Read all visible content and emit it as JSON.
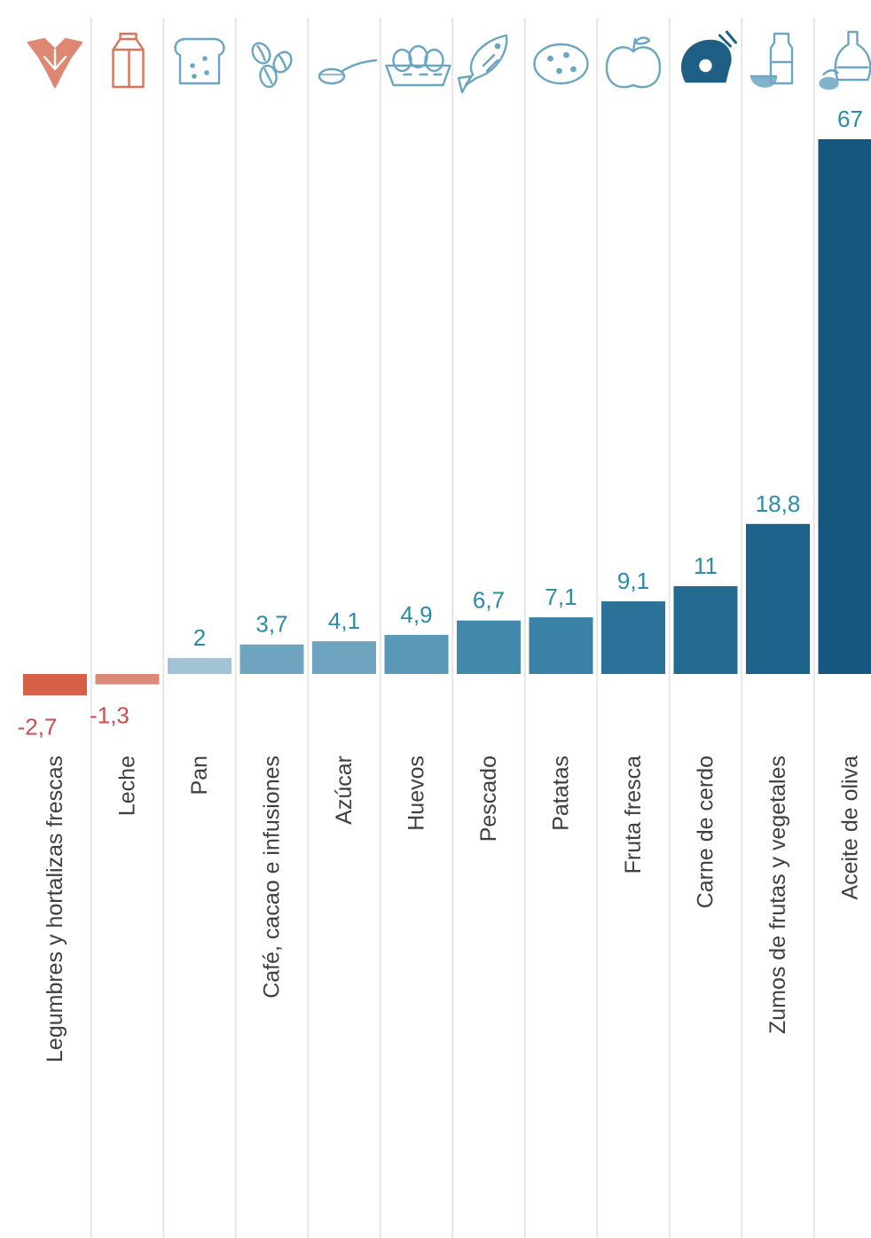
{
  "chart_data": {
    "type": "bar",
    "title": "",
    "xlabel": "",
    "ylabel": "",
    "ylim": [
      -3,
      67
    ],
    "grid": "vertical-separators",
    "legend": "none",
    "categories": [
      "Legumbres y hortalizas frescas",
      "Leche",
      "Pan",
      "Café, cacao e infusiones",
      "Azúcar",
      "Huevos",
      "Pescado",
      "Patatas",
      "Fruta fresca",
      "Carne de cerdo",
      "Zumos de frutas y vegetales",
      "Aceite de oliva"
    ],
    "values": [
      -2.7,
      -1.3,
      2,
      3.7,
      4.1,
      4.9,
      6.7,
      7.1,
      9.1,
      11,
      18.8,
      67
    ],
    "value_labels": [
      "-2,7",
      "-1,3",
      "2",
      "3,7",
      "4,1",
      "4,9",
      "6,7",
      "7,1",
      "9,1",
      "11",
      "18,8",
      "67"
    ],
    "icons": [
      "vegetables-icon",
      "milk-carton-icon",
      "bread-icon",
      "coffee-beans-icon",
      "sugar-spoon-icon",
      "eggs-icon",
      "fish-icon",
      "potatoes-icon",
      "apple-icon",
      "pork-icon",
      "juice-bottle-icon",
      "olive-oil-icon"
    ],
    "colors": {
      "negative": [
        "#d86048",
        "#dc8a78"
      ],
      "positive": [
        "#a4c2d6",
        "#6ea4c0",
        "#6ea4c0",
        "#5a98b8",
        "#4188ab",
        "#3a82a6",
        "#2a7299",
        "#236a91",
        "#1c628a",
        "#15577f"
      ],
      "negative_label": "#cf4a52",
      "positive_label": "#2a8ca8",
      "icon_negative": "#d9735a",
      "icon_positive": "#6aa6c2",
      "icon_dark": "#1f5f85",
      "separator": "#e6e6e6"
    }
  }
}
